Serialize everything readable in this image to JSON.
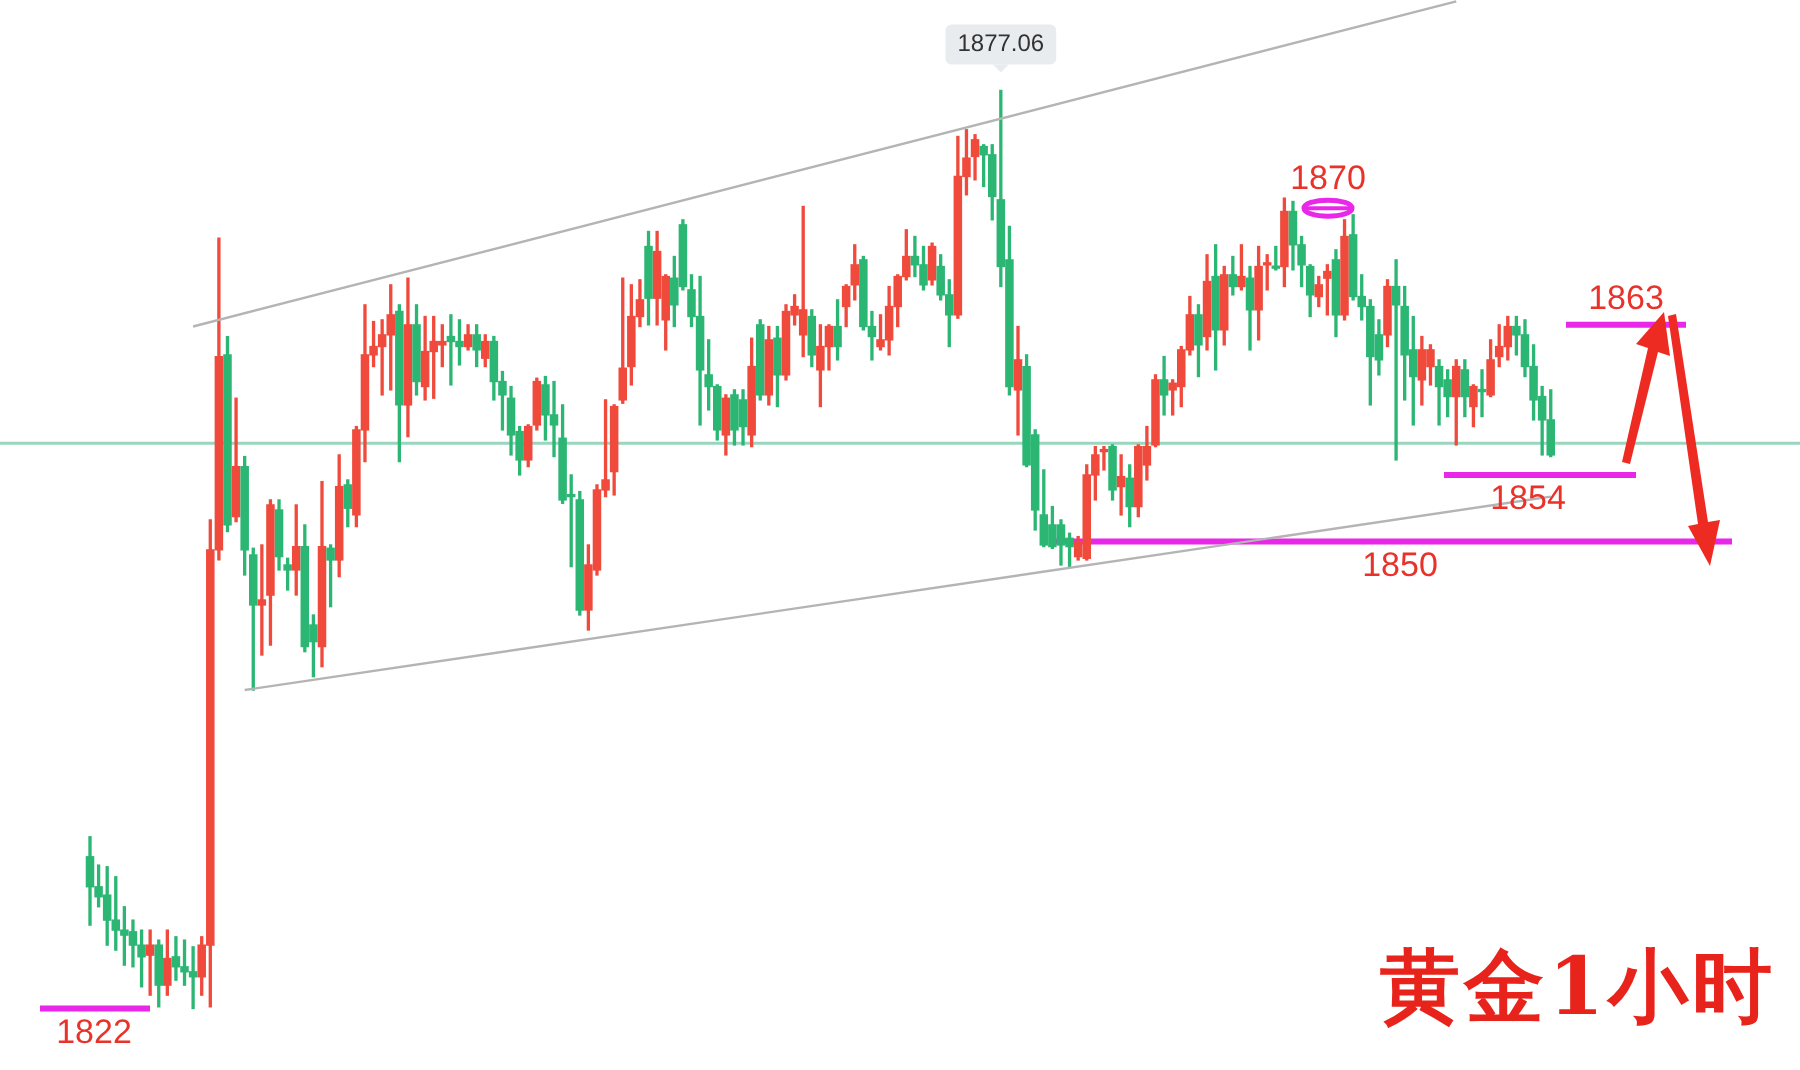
{
  "chart_data": {
    "type": "candlestick",
    "title": "黄金1小时",
    "categories": [
      null,
      null,
      null,
      null,
      null,
      null,
      null,
      null,
      null,
      null,
      null,
      null,
      null,
      null,
      null,
      null,
      null,
      null,
      null,
      null,
      null,
      null,
      null,
      null,
      null,
      null,
      null,
      null,
      null,
      null,
      null,
      null,
      null,
      null,
      null,
      null,
      null,
      null,
      null,
      null,
      null,
      null,
      null,
      null,
      null,
      null,
      null,
      null,
      null,
      null,
      null,
      null,
      null,
      null,
      null,
      null,
      null,
      null,
      null,
      null,
      null,
      null,
      null,
      null,
      null,
      null,
      null,
      null,
      null,
      null,
      null,
      null,
      null,
      null,
      null,
      null,
      null,
      null,
      null,
      null,
      null,
      null,
      null,
      null,
      null,
      null,
      null,
      null,
      null,
      null,
      null,
      null,
      null,
      null,
      null,
      null,
      null,
      null,
      null,
      null,
      null,
      null,
      null,
      null,
      null,
      null,
      null,
      null,
      null,
      null,
      null,
      null,
      null,
      null,
      null,
      null,
      null,
      null,
      null,
      null,
      null,
      null,
      null,
      null,
      null,
      null,
      null,
      null,
      null,
      null,
      null,
      null,
      null,
      null,
      null,
      null,
      null,
      null,
      null,
      null,
      null,
      null,
      null,
      null,
      null,
      null,
      null,
      null,
      null,
      null,
      null,
      null,
      null,
      null,
      null,
      null,
      null,
      null,
      null,
      null,
      null,
      null,
      null,
      null,
      null,
      null,
      null,
      null,
      null,
      null,
      null
    ],
    "ohlc": [
      [
        1831.1,
        1832.3,
        1827.0,
        1829.3
      ],
      [
        1829.3,
        1830.6,
        1828.1,
        1828.7
      ],
      [
        1828.8,
        1830.5,
        1825.8,
        1827.3
      ],
      [
        1827.3,
        1829.9,
        1825.5,
        1826.7
      ],
      [
        1826.7,
        1828.1,
        1824.6,
        1826.4
      ],
      [
        1826.6,
        1827.3,
        1824.5,
        1825.8
      ],
      [
        1825.8,
        1826.7,
        1823.3,
        1825.1
      ],
      [
        1825.2,
        1826.7,
        1822.8,
        1825.8
      ],
      [
        1825.8,
        1826.1,
        1822.1,
        1823.4
      ],
      [
        1823.4,
        1826.7,
        1822.8,
        1825.0
      ],
      [
        1825.1,
        1826.3,
        1823.7,
        1824.5
      ],
      [
        1824.5,
        1826.1,
        1823.4,
        1824.2
      ],
      [
        1824.2,
        1825.7,
        1822.0,
        1823.9
      ],
      [
        1823.9,
        1826.3,
        1822.8,
        1825.8
      ],
      [
        1825.8,
        1851.3,
        1822.1,
        1849.5
      ],
      [
        1849.5,
        1868.2,
        1848.9,
        1861.1
      ],
      [
        1861.2,
        1862.3,
        1850.6,
        1851.0
      ],
      [
        1851.5,
        1858.6,
        1851.2,
        1854.5
      ],
      [
        1854.5,
        1855.1,
        1848.0,
        1849.5
      ],
      [
        1849.2,
        1849.6,
        1841.1,
        1846.2
      ],
      [
        1846.2,
        1849.8,
        1843.2,
        1846.5
      ],
      [
        1846.8,
        1852.5,
        1843.8,
        1852.2
      ],
      [
        1851.9,
        1852.5,
        1848.3,
        1849.1
      ],
      [
        1848.6,
        1849.0,
        1847.1,
        1848.3
      ],
      [
        1848.3,
        1852.2,
        1846.8,
        1849.7
      ],
      [
        1849.7,
        1851.0,
        1843.4,
        1843.7
      ],
      [
        1845.0,
        1845.6,
        1841.9,
        1844.0
      ],
      [
        1843.7,
        1853.6,
        1842.5,
        1849.7
      ],
      [
        1849.6,
        1849.8,
        1846.1,
        1848.9
      ],
      [
        1848.9,
        1855.2,
        1847.9,
        1853.3
      ],
      [
        1853.4,
        1853.7,
        1850.9,
        1852.0
      ],
      [
        1851.6,
        1856.9,
        1850.9,
        1856.7
      ],
      [
        1856.7,
        1864.2,
        1854.8,
        1861.2
      ],
      [
        1861.2,
        1863.2,
        1860.5,
        1861.7
      ],
      [
        1861.7,
        1863.3,
        1858.8,
        1862.4
      ],
      [
        1862.4,
        1865.4,
        1859.1,
        1863.6
      ],
      [
        1863.8,
        1864.2,
        1854.8,
        1858.2
      ],
      [
        1858.2,
        1865.8,
        1856.3,
        1863.0
      ],
      [
        1863.0,
        1864.2,
        1858.8,
        1859.6
      ],
      [
        1859.3,
        1863.5,
        1858.5,
        1861.4
      ],
      [
        1861.4,
        1863.5,
        1858.6,
        1862.0
      ],
      [
        1861.8,
        1863.0,
        1860.5,
        1862.0
      ],
      [
        1862.3,
        1863.6,
        1859.4,
        1862.0
      ],
      [
        1862.0,
        1863.3,
        1860.6,
        1861.7
      ],
      [
        1861.7,
        1863.0,
        1861.5,
        1862.4
      ],
      [
        1862.4,
        1863.0,
        1860.5,
        1861.5
      ],
      [
        1861.0,
        1862.4,
        1860.5,
        1862.0
      ],
      [
        1862.0,
        1862.3,
        1858.5,
        1859.6
      ],
      [
        1859.6,
        1860.2,
        1856.7,
        1858.8
      ],
      [
        1858.6,
        1859.3,
        1855.2,
        1856.4
      ],
      [
        1856.6,
        1856.9,
        1854.0,
        1854.9
      ],
      [
        1854.9,
        1857.0,
        1854.5,
        1856.9
      ],
      [
        1857.0,
        1859.8,
        1856.7,
        1859.6
      ],
      [
        1859.4,
        1859.9,
        1856.1,
        1857.6
      ],
      [
        1857.6,
        1859.6,
        1855.1,
        1857.0
      ],
      [
        1856.2,
        1858.2,
        1852.3,
        1852.5
      ],
      [
        1852.8,
        1854.0,
        1848.5,
        1852.7
      ],
      [
        1852.5,
        1853.0,
        1845.6,
        1845.9
      ],
      [
        1845.9,
        1849.8,
        1844.7,
        1848.6
      ],
      [
        1848.3,
        1853.4,
        1848.0,
        1853.1
      ],
      [
        1853.1,
        1858.5,
        1852.7,
        1853.7
      ],
      [
        1854.2,
        1858.2,
        1852.8,
        1858.1
      ],
      [
        1858.5,
        1865.8,
        1858.3,
        1860.4
      ],
      [
        1860.5,
        1865.4,
        1859.4,
        1863.5
      ],
      [
        1863.5,
        1865.7,
        1862.9,
        1864.5
      ],
      [
        1867.7,
        1868.6,
        1863.0,
        1864.6
      ],
      [
        1864.6,
        1868.6,
        1863.0,
        1867.4
      ],
      [
        1863.3,
        1866.0,
        1861.5,
        1865.9
      ],
      [
        1865.8,
        1867.1,
        1862.9,
        1864.2
      ],
      [
        1869.0,
        1869.3,
        1865.1,
        1865.3
      ],
      [
        1865.1,
        1866.0,
        1862.9,
        1863.5
      ],
      [
        1863.5,
        1865.9,
        1857.0,
        1860.3
      ],
      [
        1860.0,
        1862.1,
        1857.9,
        1859.3
      ],
      [
        1859.3,
        1859.4,
        1856.1,
        1856.7
      ],
      [
        1856.4,
        1858.8,
        1855.2,
        1858.6
      ],
      [
        1858.8,
        1859.1,
        1855.8,
        1856.7
      ],
      [
        1858.5,
        1859.1,
        1855.8,
        1856.9
      ],
      [
        1856.4,
        1862.2,
        1855.7,
        1860.5
      ],
      [
        1863.0,
        1863.3,
        1858.5,
        1858.8
      ],
      [
        1858.8,
        1862.9,
        1858.2,
        1862.1
      ],
      [
        1862.2,
        1862.9,
        1858.1,
        1860.0
      ],
      [
        1860.0,
        1864.2,
        1859.7,
        1863.8
      ],
      [
        1863.6,
        1864.8,
        1863.0,
        1864.1
      ],
      [
        1862.4,
        1870.1,
        1861.1,
        1863.9
      ],
      [
        1863.5,
        1863.9,
        1860.5,
        1861.2
      ],
      [
        1860.3,
        1863.0,
        1858.1,
        1861.7
      ],
      [
        1861.7,
        1863.0,
        1860.3,
        1862.9
      ],
      [
        1862.9,
        1864.5,
        1860.9,
        1861.7
      ],
      [
        1864.1,
        1865.4,
        1862.9,
        1865.3
      ],
      [
        1865.4,
        1867.8,
        1864.5,
        1866.6
      ],
      [
        1866.9,
        1867.1,
        1862.7,
        1862.9
      ],
      [
        1862.9,
        1863.8,
        1860.9,
        1862.3
      ],
      [
        1861.7,
        1863.6,
        1861.5,
        1862.1
      ],
      [
        1862.1,
        1865.3,
        1861.2,
        1864.1
      ],
      [
        1864.1,
        1866.0,
        1862.9,
        1865.9
      ],
      [
        1865.9,
        1868.7,
        1865.7,
        1867.1
      ],
      [
        1867.1,
        1868.3,
        1865.9,
        1866.6
      ],
      [
        1866.6,
        1867.7,
        1865.1,
        1865.4
      ],
      [
        1865.7,
        1867.9,
        1865.4,
        1867.7
      ],
      [
        1866.5,
        1867.2,
        1864.5,
        1864.8
      ],
      [
        1864.8,
        1865.7,
        1861.7,
        1863.6
      ],
      [
        1863.6,
        1874.3,
        1863.4,
        1871.9
      ],
      [
        1871.9,
        1874.7,
        1870.8,
        1873.0
      ],
      [
        1873.1,
        1874.4,
        1871.7,
        1874.1
      ],
      [
        1873.7,
        1873.8,
        1871.3,
        1873.2
      ],
      [
        1873.2,
        1873.8,
        1869.3,
        1870.7
      ],
      [
        1870.5,
        1877.06,
        1865.3,
        1866.5
      ],
      [
        1866.9,
        1868.9,
        1858.8,
        1859.3
      ],
      [
        1859.1,
        1862.9,
        1856.4,
        1860.9
      ],
      [
        1860.5,
        1861.2,
        1854.5,
        1854.6
      ],
      [
        1856.4,
        1856.7,
        1850.7,
        1851.9
      ],
      [
        1851.6,
        1854.3,
        1849.7,
        1849.8
      ],
      [
        1851.0,
        1852.1,
        1849.6,
        1849.7
      ],
      [
        1851.0,
        1851.3,
        1848.6,
        1849.8
      ],
      [
        1850.2,
        1850.5,
        1848.5,
        1849.7
      ],
      [
        1849.1,
        1850.3,
        1848.9,
        1850.0
      ],
      [
        1849.0,
        1854.6,
        1848.9,
        1854.0
      ],
      [
        1854.0,
        1855.7,
        1852.5,
        1855.2
      ],
      [
        1855.4,
        1855.7,
        1854.3,
        1855.5
      ],
      [
        1855.7,
        1855.8,
        1852.5,
        1853.1
      ],
      [
        1853.3,
        1855.2,
        1851.6,
        1853.9
      ],
      [
        1853.8,
        1854.6,
        1850.9,
        1852.1
      ],
      [
        1852.1,
        1855.8,
        1851.5,
        1855.7
      ],
      [
        1854.6,
        1856.9,
        1853.7,
        1855.7
      ],
      [
        1855.8,
        1860.0,
        1855.7,
        1859.7
      ],
      [
        1859.7,
        1861.1,
        1857.6,
        1858.8
      ],
      [
        1859.1,
        1859.7,
        1857.6,
        1859.5
      ],
      [
        1859.3,
        1861.7,
        1858.1,
        1861.5
      ],
      [
        1861.5,
        1864.7,
        1861.2,
        1863.6
      ],
      [
        1863.6,
        1864.2,
        1859.9,
        1861.8
      ],
      [
        1862.3,
        1867.2,
        1861.5,
        1865.6
      ],
      [
        1865.9,
        1867.8,
        1860.3,
        1862.7
      ],
      [
        1862.7,
        1866.5,
        1861.8,
        1866.0
      ],
      [
        1866.0,
        1867.1,
        1864.8,
        1865.3
      ],
      [
        1865.3,
        1867.8,
        1865.1,
        1865.9
      ],
      [
        1865.8,
        1866.5,
        1861.5,
        1863.9
      ],
      [
        1863.9,
        1867.7,
        1862.1,
        1866.5
      ],
      [
        1866.6,
        1867.2,
        1865.1,
        1866.7
      ],
      [
        1866.5,
        1867.7,
        1866.3,
        1866.4
      ],
      [
        1866.5,
        1870.6,
        1865.3,
        1869.8
      ],
      [
        1869.8,
        1870.4,
        1866.3,
        1867.8
      ],
      [
        1867.8,
        1868.3,
        1865.3,
        1866.6
      ],
      [
        1866.5,
        1866.6,
        1863.5,
        1864.8
      ],
      [
        1864.7,
        1865.9,
        1864.1,
        1865.4
      ],
      [
        1865.8,
        1866.6,
        1863.6,
        1866.2
      ],
      [
        1866.9,
        1867.5,
        1862.3,
        1863.6
      ],
      [
        1863.6,
        1869.3,
        1863.3,
        1868.3
      ],
      [
        1868.4,
        1869.6,
        1864.5,
        1864.7
      ],
      [
        1864.7,
        1866.0,
        1863.3,
        1864.1
      ],
      [
        1864.1,
        1864.5,
        1858.2,
        1861.1
      ],
      [
        1862.4,
        1863.3,
        1860.0,
        1860.9
      ],
      [
        1862.4,
        1865.7,
        1861.7,
        1865.3
      ],
      [
        1865.3,
        1866.9,
        1854.9,
        1864.2
      ],
      [
        1864.1,
        1865.3,
        1858.5,
        1861.2
      ],
      [
        1861.5,
        1863.5,
        1857.0,
        1859.9
      ],
      [
        1859.7,
        1862.3,
        1858.2,
        1861.5
      ],
      [
        1860.5,
        1861.8,
        1859.4,
        1861.5
      ],
      [
        1860.5,
        1860.9,
        1857.0,
        1859.3
      ],
      [
        1859.7,
        1860.3,
        1857.5,
        1858.7
      ],
      [
        1858.7,
        1860.9,
        1855.8,
        1860.5
      ],
      [
        1860.3,
        1860.9,
        1857.5,
        1858.7
      ],
      [
        1858.1,
        1859.4,
        1856.9,
        1859.3
      ],
      [
        1859.1,
        1860.3,
        1857.5,
        1859.0
      ],
      [
        1858.8,
        1862.1,
        1858.7,
        1860.9
      ],
      [
        1861.1,
        1863.0,
        1860.5,
        1861.7
      ],
      [
        1861.7,
        1863.5,
        1860.9,
        1862.9
      ],
      [
        1862.9,
        1863.5,
        1861.2,
        1862.4
      ],
      [
        1862.4,
        1863.3,
        1859.9,
        1860.5
      ],
      [
        1860.5,
        1861.8,
        1857.3,
        1858.5
      ],
      [
        1858.7,
        1859.3,
        1855.2,
        1857.3
      ],
      [
        1857.3,
        1859.1,
        1855.1,
        1855.2
      ]
    ],
    "colors": [
      "#2bb673",
      "#2bb673",
      "#2bb673",
      "#2bb673",
      "#2bb673",
      "#2bb673",
      "#2bb673",
      "#ef4a3c",
      "#2bb673",
      "#ef4a3c",
      "#2bb673",
      "#2bb673",
      "#2bb673",
      "#ef4a3c",
      "#ef4a3c",
      "#ef4a3c",
      "#2bb673",
      "#ef4a3c",
      "#2bb673",
      "#2bb673",
      "#ef4a3c",
      "#ef4a3c",
      "#2bb673",
      "#2bb673",
      "#ef4a3c",
      "#2bb673",
      "#2bb673",
      "#ef4a3c",
      "#2bb673",
      "#ef4a3c",
      "#2bb673",
      "#ef4a3c",
      "#ef4a3c",
      "#ef4a3c",
      "#ef4a3c",
      "#ef4a3c",
      "#2bb673",
      "#ef4a3c",
      "#2bb673",
      "#ef4a3c",
      "#ef4a3c",
      "#ef4a3c",
      "#2bb673",
      "#2bb673",
      "#ef4a3c",
      "#2bb673",
      "#ef4a3c",
      "#2bb673",
      "#2bb673",
      "#2bb673",
      "#2bb673",
      "#ef4a3c",
      "#ef4a3c",
      "#2bb673",
      "#2bb673",
      "#2bb673",
      "#2bb673",
      "#2bb673",
      "#ef4a3c",
      "#ef4a3c",
      "#ef4a3c",
      "#ef4a3c",
      "#ef4a3c",
      "#ef4a3c",
      "#ef4a3c",
      "#2bb673",
      "#ef4a3c",
      "#ef4a3c",
      "#2bb673",
      "#2bb673",
      "#2bb673",
      "#2bb673",
      "#2bb673",
      "#2bb673",
      "#ef4a3c",
      "#2bb673",
      "#2bb673",
      "#ef4a3c",
      "#2bb673",
      "#ef4a3c",
      "#2bb673",
      "#ef4a3c",
      "#ef4a3c",
      "#ef4a3c",
      "#2bb673",
      "#ef4a3c",
      "#ef4a3c",
      "#2bb673",
      "#ef4a3c",
      "#ef4a3c",
      "#2bb673",
      "#2bb673",
      "#ef4a3c",
      "#ef4a3c",
      "#ef4a3c",
      "#ef4a3c",
      "#2bb673",
      "#2bb673",
      "#ef4a3c",
      "#2bb673",
      "#2bb673",
      "#ef4a3c",
      "#ef4a3c",
      "#ef4a3c",
      "#2bb673",
      "#2bb673",
      "#2bb673",
      "#2bb673",
      "#ef4a3c",
      "#2bb673",
      "#2bb673",
      "#2bb673",
      "#2bb673",
      "#2bb673",
      "#2bb673",
      "#ef4a3c",
      "#ef4a3c",
      "#ef4a3c",
      "#ef4a3c",
      "#2bb673",
      "#ef4a3c",
      "#2bb673",
      "#ef4a3c",
      "#ef4a3c",
      "#ef4a3c",
      "#2bb673",
      "#ef4a3c",
      "#ef4a3c",
      "#ef4a3c",
      "#2bb673",
      "#ef4a3c",
      "#2bb673",
      "#ef4a3c",
      "#2bb673",
      "#ef4a3c",
      "#2bb673",
      "#ef4a3c",
      "#ef4a3c",
      "#2bb673",
      "#ef4a3c",
      "#2bb673",
      "#2bb673",
      "#2bb673",
      "#ef4a3c",
      "#ef4a3c",
      "#2bb673",
      "#ef4a3c",
      "#2bb673",
      "#2bb673",
      "#2bb673",
      "#2bb673",
      "#ef4a3c",
      "#2bb673",
      "#2bb673",
      "#2bb673",
      "#ef4a3c",
      "#ef4a3c",
      "#2bb673",
      "#2bb673",
      "#ef4a3c",
      "#2bb673",
      "#ef4a3c",
      "#2bb673",
      "#ef4a3c",
      "#ef4a3c",
      "#ef4a3c",
      "#2bb673",
      "#2bb673",
      "#2bb673",
      "#2bb673",
      "#2bb673"
    ],
    "series": [
      {
        "type": "line",
        "color": "#b4b4b4",
        "values": [
          null,
          null,
          null,
          null,
          null,
          null,
          null,
          null,
          null,
          null,
          null,
          null,
          1862.9,
          null,
          null,
          null,
          null,
          null,
          null,
          null,
          null,
          null,
          null,
          null,
          null,
          null,
          null,
          null,
          null,
          null,
          null,
          null,
          null,
          null,
          null,
          null,
          null,
          null,
          null,
          null,
          null,
          null,
          null,
          null,
          null,
          null,
          null,
          null,
          null,
          null,
          null,
          null,
          null,
          null,
          null,
          null,
          null,
          null,
          null,
          null,
          null,
          null,
          null,
          null,
          null,
          null,
          null,
          null,
          null,
          null,
          null,
          null,
          null,
          null,
          null,
          null,
          null,
          null,
          null,
          null,
          null,
          null,
          null,
          null,
          null,
          null,
          null,
          null,
          null,
          null,
          null,
          null,
          null,
          null,
          null,
          null,
          null,
          null,
          null,
          null,
          null,
          null,
          null,
          null,
          null,
          null,
          null,
          null,
          null,
          null,
          null,
          null,
          null,
          null,
          null,
          null,
          null,
          null,
          null,
          null,
          null,
          null,
          null,
          null,
          null,
          null,
          null,
          null,
          null,
          null,
          null,
          null,
          null,
          null,
          null,
          null,
          null,
          null,
          null,
          null,
          null,
          null,
          null,
          null,
          null,
          null,
          null,
          null,
          null,
          null,
          null,
          null,
          null,
          null,
          null,
          null,
          null,
          null,
          null,
          1882.4,
          null,
          null,
          null,
          null,
          null,
          null,
          null,
          null,
          null,
          null,
          null
        ]
      },
      {
        "type": "line",
        "color": "#b4b4b4",
        "values": [
          null,
          null,
          null,
          null,
          null,
          null,
          null,
          null,
          null,
          null,
          null,
          null,
          null,
          null,
          null,
          null,
          null,
          null,
          1841.1,
          null,
          null,
          null,
          null,
          null,
          null,
          null,
          null,
          null,
          null,
          null,
          null,
          null,
          null,
          null,
          null,
          null,
          null,
          null,
          null,
          null,
          null,
          null,
          null,
          null,
          null,
          null,
          null,
          null,
          null,
          null,
          null,
          null,
          null,
          null,
          null,
          null,
          null,
          null,
          null,
          null,
          null,
          null,
          null,
          null,
          null,
          null,
          null,
          null,
          null,
          null,
          null,
          null,
          null,
          null,
          null,
          null,
          null,
          null,
          null,
          null,
          null,
          null,
          null,
          null,
          null,
          null,
          null,
          null,
          null,
          null,
          null,
          null,
          null,
          null,
          null,
          null,
          null,
          null,
          null,
          null,
          null,
          null,
          null,
          null,
          null,
          null,
          null,
          null,
          null,
          null,
          null,
          null,
          null,
          null,
          null,
          null,
          null,
          null,
          null,
          null,
          null,
          null,
          null,
          null,
          null,
          null,
          null,
          null,
          null,
          null,
          null,
          null,
          null,
          null,
          null,
          null,
          null,
          null,
          null,
          null,
          null,
          null,
          null,
          null,
          null,
          null,
          null,
          null,
          null,
          null,
          null,
          null,
          null,
          null,
          null,
          null,
          null,
          null,
          null,
          null,
          null,
          null,
          null,
          null,
          null,
          null,
          null,
          null,
          null,
          null,
          1852.7
        ]
      }
    ],
    "ref_lines": [
      {
        "axis": "y",
        "value": 1870,
        "label": "1870",
        "color": "#e827e8"
      },
      {
        "axis": "y",
        "value": 1863,
        "label": "1863",
        "color": "#e827e8"
      },
      {
        "axis": "y",
        "value": 1854,
        "label": "1854",
        "color": "#e827e8"
      },
      {
        "axis": "y",
        "value": 1850,
        "label": "1850",
        "color": "#e827e8"
      },
      {
        "axis": "y",
        "value": 1822,
        "label": "1822",
        "color": "#e827e8"
      },
      {
        "axis": "y",
        "value": 1855.9,
        "color": "#9ad6bd"
      }
    ],
    "annotations": [
      {
        "text": "1877.06",
        "y": 1877.06
      }
    ]
  }
}
